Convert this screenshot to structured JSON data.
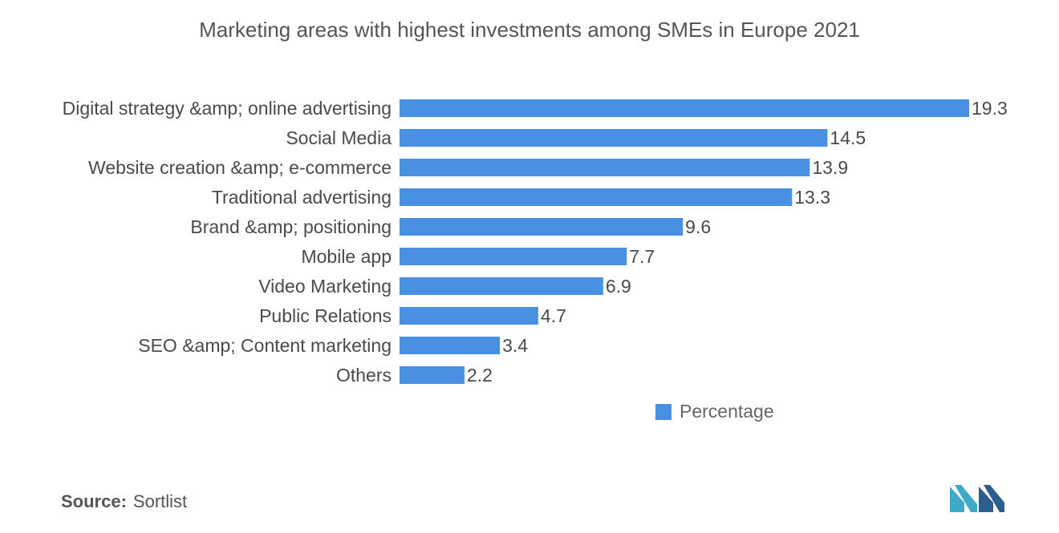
{
  "chart_data": {
    "type": "bar",
    "orientation": "horizontal",
    "title": "Marketing areas with highest investments among SMEs in Europe 2021",
    "categories": [
      "Digital strategy &amp; online advertising",
      "Social Media",
      "Website creation &amp; e-commerce",
      "Traditional advertising",
      "Brand &amp; positioning",
      "Mobile app",
      "Video Marketing",
      "Public Relations",
      "SEO &amp; Content marketing",
      "Others"
    ],
    "series": [
      {
        "name": "Percentage",
        "values": [
          19.3,
          14.5,
          13.9,
          13.3,
          9.6,
          7.7,
          6.9,
          4.7,
          3.4,
          2.2
        ],
        "color": "#4a90e2"
      }
    ],
    "xlim": [
      0,
      19.3
    ],
    "grid": false,
    "legend_position": "bottom-center"
  },
  "source": {
    "label": "Source:",
    "value": "Sortlist"
  },
  "logo": {
    "icon": "mordor-intelligence-logo",
    "color_left": "#3fa9c9",
    "color_right": "#2c5d8f"
  }
}
